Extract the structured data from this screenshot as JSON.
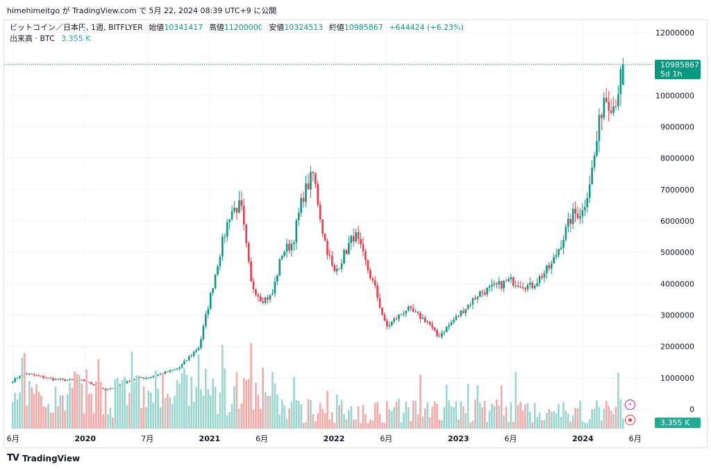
{
  "header": {
    "publish_line": "himehimeitgo が TradingView.com で 5月 22, 2024 08:39 UTC+9 に公開"
  },
  "legend": {
    "symbol": "ビットコイン／日本円, 1週, BITFLYER",
    "open_label": "始値",
    "open_value": "10341417",
    "high_label": "高値",
    "high_value": "11200000",
    "low_label": "安値",
    "low_value": "10324513",
    "close_label": "終値",
    "close_value": "10985867",
    "change": "+644424 (+6.23%)"
  },
  "volume_legend": {
    "label": "出来高 · BTC",
    "value": "3.355 K"
  },
  "price_tag": {
    "price": "10985867",
    "countdown": "5d 1h"
  },
  "volume_tag": "3.355 K",
  "logo": {
    "mark": "TV",
    "text": "TradingView"
  },
  "colors": {
    "up": "#089981",
    "down": "#f23645",
    "up_volume": "#9ad6ce",
    "down_volume": "#f7a9a7",
    "grid": "#f0f3fa"
  },
  "icons": {
    "indicator_1": "lightning-icon",
    "indicator_2": "record-icon"
  },
  "chart_data": {
    "type": "candlestick",
    "title": "ビットコイン／日本円, 1週, BITFLYER",
    "xlabel": "",
    "ylabel": "",
    "ylim": [
      0,
      12000000
    ],
    "y_ticks": [
      12000000,
      11000000,
      10000000,
      9000000,
      8000000,
      7000000,
      6000000,
      5000000,
      4000000,
      3000000,
      2000000,
      1000000,
      0
    ],
    "x_ticks": [
      "6月",
      "2020",
      "7月",
      "2021",
      "6月",
      "2022",
      "6月",
      "2023",
      "6月",
      "2024",
      "6月"
    ],
    "last_close": 10985867,
    "volume_unit": "BTC",
    "close_anchors": [
      {
        "x": "2019-06",
        "close": 900000
      },
      {
        "x": "2019-07",
        "close": 1150000
      },
      {
        "x": "2019-10",
        "close": 950000
      },
      {
        "x": "2020-01",
        "close": 900000
      },
      {
        "x": "2020-03",
        "close": 600000
      },
      {
        "x": "2020-06",
        "close": 1000000
      },
      {
        "x": "2020-07",
        "close": 1000000
      },
      {
        "x": "2020-10",
        "close": 1300000
      },
      {
        "x": "2020-12",
        "close": 2000000
      },
      {
        "x": "2021-01",
        "close": 3500000
      },
      {
        "x": "2021-02",
        "close": 5000000
      },
      {
        "x": "2021-03",
        "close": 6300000
      },
      {
        "x": "2021-04",
        "close": 6500000
      },
      {
        "x": "2021-05",
        "close": 4000000
      },
      {
        "x": "2021-06",
        "close": 3500000
      },
      {
        "x": "2021-07",
        "close": 3600000
      },
      {
        "x": "2021-08",
        "close": 5000000
      },
      {
        "x": "2021-09",
        "close": 5300000
      },
      {
        "x": "2021-10",
        "close": 6800000
      },
      {
        "x": "2021-11",
        "close": 7500000
      },
      {
        "x": "2021-12",
        "close": 5500000
      },
      {
        "x": "2022-01",
        "close": 4300000
      },
      {
        "x": "2022-03",
        "close": 5600000
      },
      {
        "x": "2022-05",
        "close": 3800000
      },
      {
        "x": "2022-06",
        "close": 2600000
      },
      {
        "x": "2022-08",
        "close": 3200000
      },
      {
        "x": "2022-10",
        "close": 2800000
      },
      {
        "x": "2022-11",
        "close": 2300000
      },
      {
        "x": "2023-01",
        "close": 3000000
      },
      {
        "x": "2023-03",
        "close": 3700000
      },
      {
        "x": "2023-06",
        "close": 4100000
      },
      {
        "x": "2023-07",
        "close": 4000000
      },
      {
        "x": "2023-08",
        "close": 3900000
      },
      {
        "x": "2023-10",
        "close": 4600000
      },
      {
        "x": "2023-12",
        "close": 6200000
      },
      {
        "x": "2024-01",
        "close": 6300000
      },
      {
        "x": "2024-02",
        "close": 7800000
      },
      {
        "x": "2024-03",
        "close": 10000000
      },
      {
        "x": "2024-04",
        "close": 9700000
      },
      {
        "x": "2024-05",
        "close": 10985867
      }
    ]
  }
}
